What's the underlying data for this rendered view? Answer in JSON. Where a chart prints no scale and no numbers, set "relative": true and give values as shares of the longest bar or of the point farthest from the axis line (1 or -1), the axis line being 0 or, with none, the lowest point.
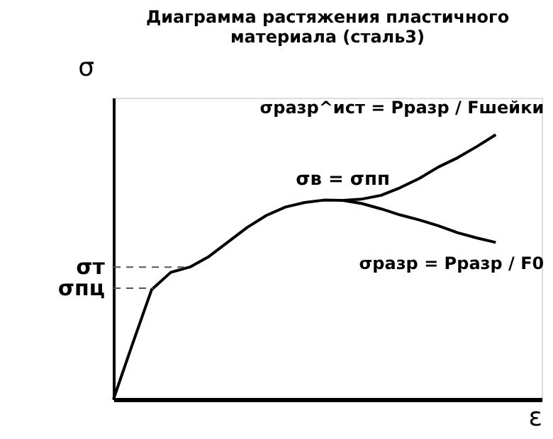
{
  "chart_data": {
    "type": "line",
    "title": [
      "Диаграмма растяжения пластичного",
      "материала (сталь3)"
    ],
    "xlabel": "ε",
    "ylabel": "σ",
    "relative": true,
    "grid": false,
    "marker": "none",
    "line_style": "solid",
    "categories": [
      null,
      null,
      null,
      null,
      null,
      null,
      null,
      null,
      null,
      null,
      null,
      null,
      null,
      null,
      null,
      null,
      null,
      null,
      null,
      null,
      null
    ],
    "series": [
      {
        "color": "#000000",
        "values": [
          0,
          0.21,
          0.415,
          0.48,
          0.5,
          0.54,
          0.595,
          0.65,
          0.695,
          0.727,
          0.744,
          0.753,
          0.752,
          0.757,
          0.771,
          0.8,
          0.835,
          0.878,
          0.913,
          0.955,
          1
        ]
      },
      {
        "color": "#000000",
        "values": [
          null,
          null,
          null,
          null,
          null,
          null,
          null,
          null,
          null,
          null,
          null,
          null,
          0.752,
          0.74,
          0.72,
          0.697,
          0.678,
          0.656,
          0.63,
          0.61,
          0.593
        ]
      }
    ],
    "ref_lines": [
      {
        "axis": "y",
        "value": 0.5,
        "label": "σт",
        "line_style": "dashed"
      },
      {
        "axis": "y",
        "value": 0.42,
        "label": "σпц",
        "line_style": "dashed"
      }
    ],
    "annotations": [
      "σв = σпп",
      "σразр^ист = Pразр / Fшейки",
      "σразр = Pразр / F0"
    ]
  }
}
